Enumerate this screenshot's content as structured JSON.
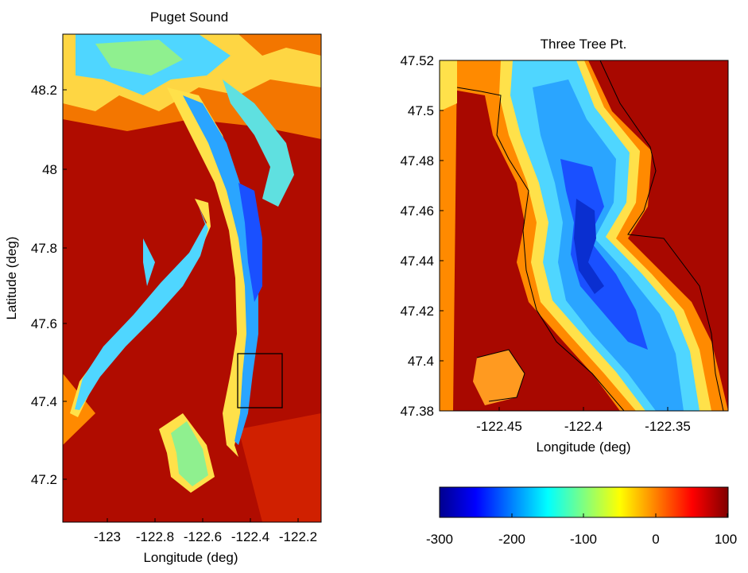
{
  "figure": {
    "left_panel": {
      "title": "Puget Sound",
      "xlabel": "Longitude (deg)",
      "ylabel": "Latitude (deg)",
      "xticks": [
        "-123",
        "-122.8",
        "-122.6",
        "-122.4",
        "-122.2"
      ],
      "yticks": [
        "48.2",
        "48",
        "47.8",
        "47.6",
        "47.4",
        "47.2"
      ],
      "xlim": [
        -123.23,
        -122.14
      ],
      "ylim": [
        47.08,
        48.35
      ],
      "inset_box": {
        "lon": [
          -122.49,
          -122.32
        ],
        "lat": [
          47.38,
          47.52
        ]
      }
    },
    "right_panel": {
      "title": "Three Tree Pt.",
      "xlabel": "Longitude (deg)",
      "xticks": [
        "-122.45",
        "-122.4",
        "-122.35"
      ],
      "yticks": [
        "47.52",
        "47.5",
        "47.48",
        "47.46",
        "47.44",
        "47.42",
        "47.4",
        "47.38"
      ],
      "xlim": [
        -122.49,
        -122.32
      ],
      "ylim": [
        47.38,
        47.52
      ]
    },
    "colorbar": {
      "ticks": [
        "-300",
        "-200",
        "-100",
        "0",
        "100"
      ],
      "range": [
        -300,
        100
      ],
      "colormap": "jet",
      "colors": [
        "#00008f",
        "#0000ff",
        "#0080ff",
        "#00ffff",
        "#80ff80",
        "#ffff00",
        "#ff8000",
        "#ff0000",
        "#800000"
      ]
    }
  }
}
